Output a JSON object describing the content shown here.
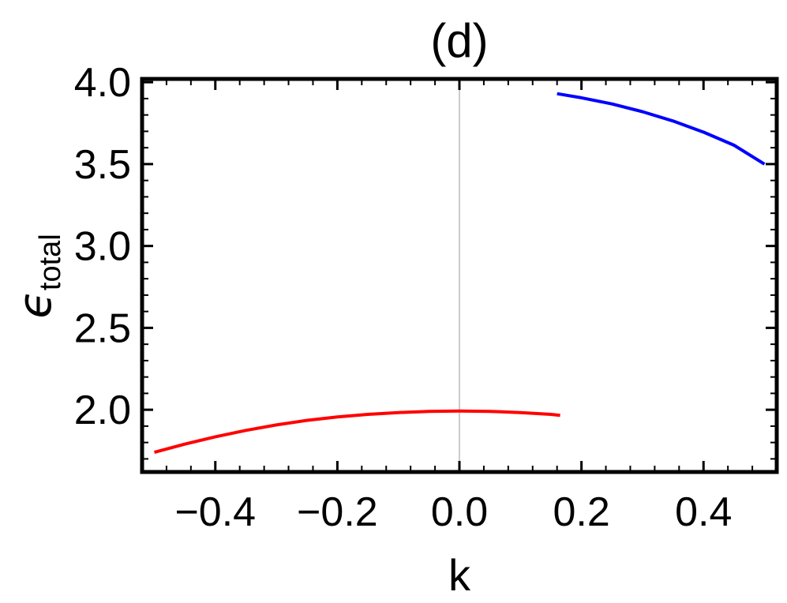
{
  "chart_data": {
    "type": "line",
    "title": "(d)",
    "xlabel": "k",
    "ylabel": {
      "symbol": "ϵ",
      "subscript": "total"
    },
    "xlim": [
      -0.52,
      0.52
    ],
    "ylim": [
      1.62,
      4.02
    ],
    "xticks": [
      -0.4,
      -0.2,
      0.0,
      0.2,
      0.4
    ],
    "xtick_labels": [
      "−0.4",
      "−0.2",
      "0.0",
      "0.2",
      "0.4"
    ],
    "yticks": [
      2.0,
      2.5,
      3.0,
      3.5,
      4.0
    ],
    "ytick_labels": [
      "2.0",
      "2.5",
      "3.0",
      "3.5",
      "4.0"
    ],
    "grid": false,
    "zero_line": true,
    "series": [
      {
        "color": "#ff0000",
        "x": [
          -0.5,
          -0.45,
          -0.4,
          -0.35,
          -0.3,
          -0.25,
          -0.2,
          -0.15,
          -0.1,
          -0.05,
          0.0,
          0.05,
          0.1,
          0.15,
          0.165
        ],
        "y": [
          1.74,
          1.79,
          1.835,
          1.874,
          1.907,
          1.935,
          1.956,
          1.972,
          1.983,
          1.99,
          1.992,
          1.99,
          1.983,
          1.972,
          1.966
        ]
      },
      {
        "color": "#0000ff",
        "x": [
          0.16,
          0.2,
          0.25,
          0.3,
          0.35,
          0.4,
          0.45,
          0.5
        ],
        "y": [
          3.93,
          3.905,
          3.867,
          3.82,
          3.763,
          3.695,
          3.615,
          3.5
        ]
      }
    ]
  }
}
